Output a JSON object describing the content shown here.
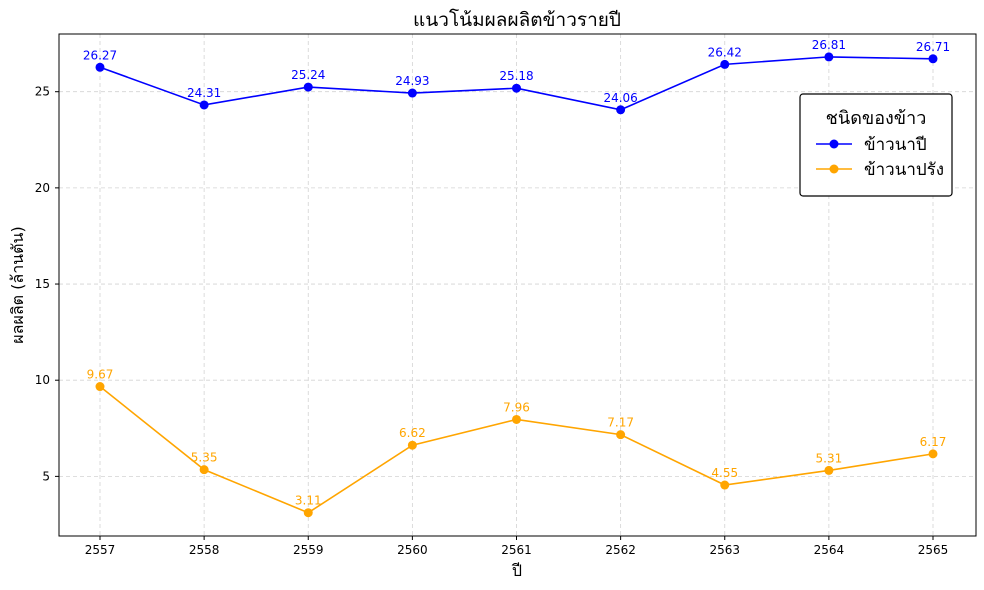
{
  "chart_data": {
    "type": "line",
    "title": "แนวโน้มผลผลิตข้าวรายปี",
    "xlabel": "ปี",
    "ylabel": "ผลผลิต (ล้านตัน)",
    "x": [
      "2557",
      "2558",
      "2559",
      "2560",
      "2561",
      "2562",
      "2563",
      "2564",
      "2565"
    ],
    "yticks": [
      5,
      10,
      15,
      20,
      25
    ],
    "ylim": [
      1.9,
      28.0
    ],
    "grid": true,
    "legend": {
      "title": "ชนิดของข้าว",
      "placement": "right"
    },
    "series": [
      {
        "name": "ข้าวนาปี",
        "color": "#0000ff",
        "values": [
          26.27,
          24.31,
          25.24,
          24.93,
          25.18,
          24.06,
          26.42,
          26.81,
          26.71
        ],
        "labels": [
          "26.27",
          "24.31",
          "25.24",
          "24.93",
          "25.18",
          "24.06",
          "26.42",
          "26.81",
          "26.71"
        ]
      },
      {
        "name": "ข้าวนาปรัง",
        "color": "#ffa500",
        "values": [
          9.67,
          5.35,
          3.11,
          6.62,
          7.96,
          7.17,
          4.55,
          5.31,
          6.17
        ],
        "labels": [
          "9.67",
          "5.35",
          "3.11",
          "6.62",
          "7.96",
          "7.17",
          "4.55",
          "5.31",
          "6.17"
        ]
      }
    ]
  }
}
